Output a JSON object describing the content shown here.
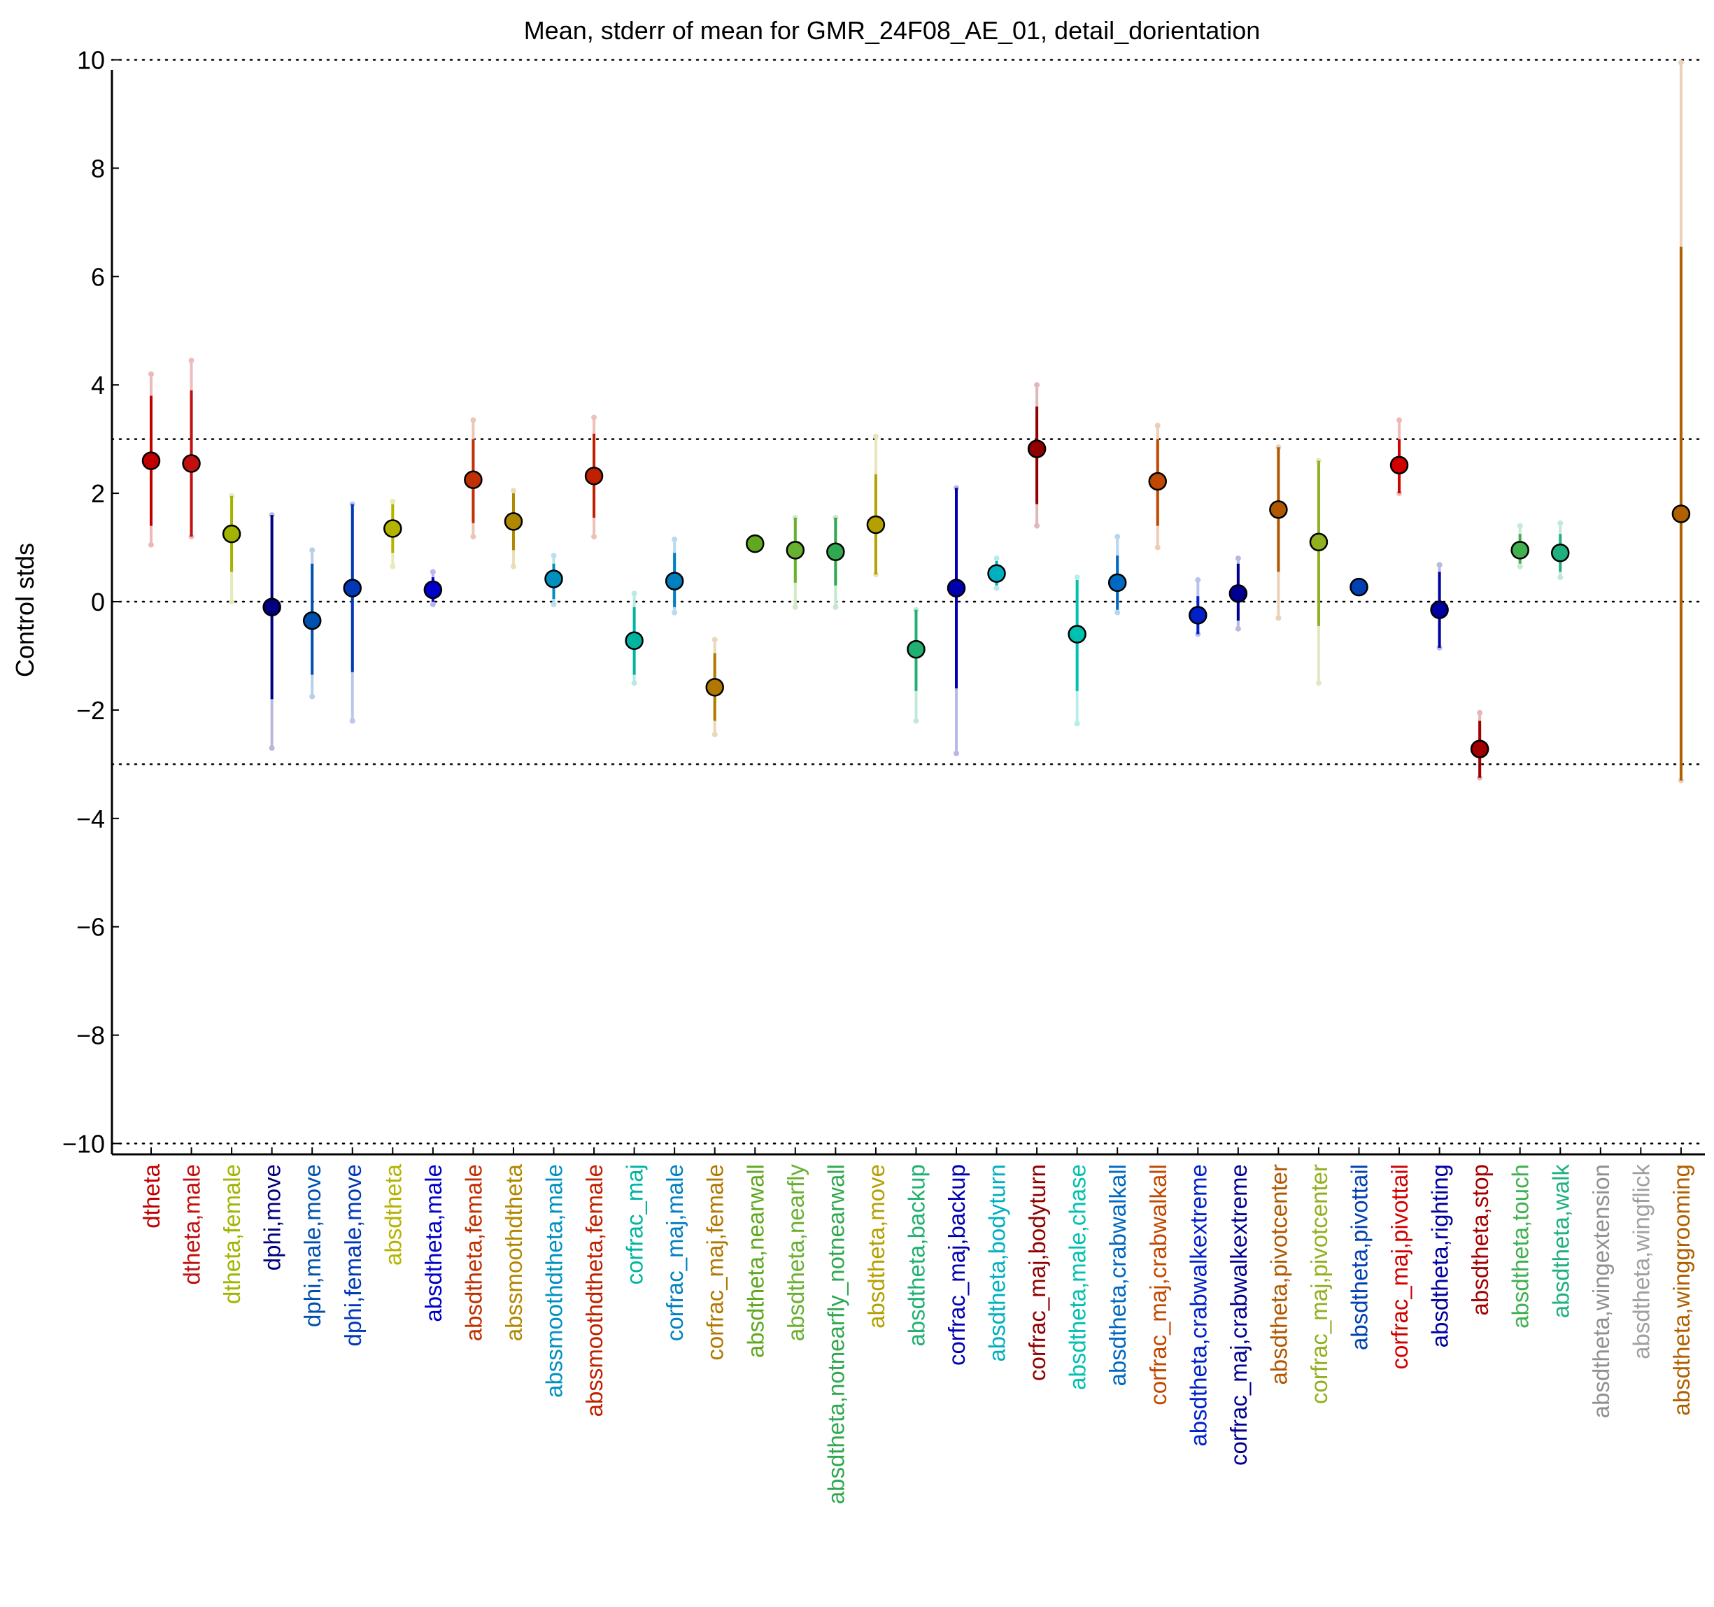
{
  "chart_data": {
    "type": "scatter",
    "title": "Mean, stderr of mean for GMR_24F08_AE_01, detail_dorientation",
    "xlabel": "",
    "ylabel": "Control stds",
    "ylim": [
      -10.2,
      10.2
    ],
    "yticks": [
      10,
      8,
      6,
      4,
      2,
      0,
      -2,
      -4,
      -6,
      -8,
      -10
    ],
    "ytick_labels": [
      "10",
      "8",
      "6",
      "4",
      "2",
      "0",
      "−2",
      "−4",
      "−6",
      "−8",
      "−10"
    ],
    "reference_lines": [
      10,
      3,
      0,
      -3,
      -10
    ],
    "grid": false,
    "legend": "none",
    "points": [
      {
        "label": "dtheta",
        "color": "#c00000",
        "mean": 2.6,
        "err_dark": [
          1.4,
          3.8
        ],
        "err_light": [
          1.05,
          4.2
        ]
      },
      {
        "label": "dtheta,male",
        "color": "#c01010",
        "mean": 2.55,
        "err_dark": [
          1.2,
          3.9
        ],
        "err_light": [
          1.2,
          4.45
        ]
      },
      {
        "label": "dtheta,female",
        "color": "#a0b400",
        "mean": 1.25,
        "err_dark": [
          0.55,
          1.95
        ],
        "err_light": [
          0.0,
          1.95
        ]
      },
      {
        "label": "dphi,move",
        "color": "#000080",
        "mean": -0.1,
        "err_dark": [
          -1.8,
          1.6
        ],
        "err_light": [
          -2.7,
          1.6
        ]
      },
      {
        "label": "dphi,male,move",
        "color": "#0050b0",
        "mean": -0.35,
        "err_dark": [
          -1.35,
          0.7
        ],
        "err_light": [
          -1.75,
          0.95
        ]
      },
      {
        "label": "dphi,female,move",
        "color": "#0038b8",
        "mean": 0.25,
        "err_dark": [
          -1.3,
          1.8
        ],
        "err_light": [
          -2.2,
          1.8
        ]
      },
      {
        "label": "absdtheta",
        "color": "#b4b400",
        "mean": 1.35,
        "err_dark": [
          0.9,
          1.8
        ],
        "err_light": [
          0.65,
          1.85
        ]
      },
      {
        "label": "absdtheta,male",
        "color": "#0000c8",
        "mean": 0.22,
        "err_dark": [
          0.0,
          0.45
        ],
        "err_light": [
          -0.05,
          0.55
        ]
      },
      {
        "label": "absdtheta,female",
        "color": "#c03000",
        "mean": 2.25,
        "err_dark": [
          1.45,
          3.0
        ],
        "err_light": [
          1.2,
          3.35
        ]
      },
      {
        "label": "abssmoothdtheta",
        "color": "#b08800",
        "mean": 1.48,
        "err_dark": [
          0.95,
          2.0
        ],
        "err_light": [
          0.65,
          2.05
        ]
      },
      {
        "label": "abssmoothdtheta,male",
        "color": "#0090c0",
        "mean": 0.42,
        "err_dark": [
          0.05,
          0.7
        ],
        "err_light": [
          -0.05,
          0.85
        ]
      },
      {
        "label": "abssmoothdtheta,female",
        "color": "#c02000",
        "mean": 2.32,
        "err_dark": [
          1.55,
          3.1
        ],
        "err_light": [
          1.2,
          3.4
        ]
      },
      {
        "label": "corfrac_maj",
        "color": "#00b4a0",
        "mean": -0.72,
        "err_dark": [
          -1.35,
          -0.1
        ],
        "err_light": [
          -1.5,
          0.15
        ]
      },
      {
        "label": "corfrac_maj,male",
        "color": "#0080c0",
        "mean": 0.38,
        "err_dark": [
          -0.1,
          0.9
        ],
        "err_light": [
          -0.2,
          1.15
        ]
      },
      {
        "label": "corfrac_maj,female",
        "color": "#b07800",
        "mean": -1.58,
        "err_dark": [
          -2.2,
          -0.95
        ],
        "err_light": [
          -2.45,
          -0.7
        ]
      },
      {
        "label": "absdtheta,nearwall",
        "color": "#60a820",
        "mean": 1.07,
        "err_dark": null,
        "err_light": null
      },
      {
        "label": "absdtheta,nearfly",
        "color": "#68b030",
        "mean": 0.95,
        "err_dark": [
          0.35,
          1.55
        ],
        "err_light": [
          -0.1,
          1.55
        ]
      },
      {
        "label": "absdtheta,notnearfly_notnearwall",
        "color": "#30a850",
        "mean": 0.92,
        "err_dark": [
          0.3,
          1.55
        ],
        "err_light": [
          -0.1,
          1.55
        ]
      },
      {
        "label": "absdtheta,move",
        "color": "#b4a000",
        "mean": 1.42,
        "err_dark": [
          0.5,
          2.35
        ],
        "err_light": [
          0.5,
          3.05
        ]
      },
      {
        "label": "absdtheta,backup",
        "color": "#20b070",
        "mean": -0.88,
        "err_dark": [
          -1.65,
          -0.15
        ],
        "err_light": [
          -2.2,
          -0.15
        ]
      },
      {
        "label": "corfrac_maj,backup",
        "color": "#0000b0",
        "mean": 0.25,
        "err_dark": [
          -1.6,
          2.1
        ],
        "err_light": [
          -2.8,
          2.1
        ]
      },
      {
        "label": "absdtheta,bodyturn",
        "color": "#00b0c0",
        "mean": 0.52,
        "err_dark": [
          0.3,
          0.75
        ],
        "err_light": [
          0.25,
          0.8
        ]
      },
      {
        "label": "corfrac_maj,bodyturn",
        "color": "#900000",
        "mean": 2.82,
        "err_dark": [
          1.8,
          3.6
        ],
        "err_light": [
          1.4,
          4.0
        ]
      },
      {
        "label": "absdtheta,male,chase",
        "color": "#00c0b0",
        "mean": -0.6,
        "err_dark": [
          -1.65,
          0.4
        ],
        "err_light": [
          -2.25,
          0.45
        ]
      },
      {
        "label": "absdtheta,crabwalkall",
        "color": "#0068c0",
        "mean": 0.35,
        "err_dark": [
          -0.15,
          0.85
        ],
        "err_light": [
          -0.2,
          1.2
        ]
      },
      {
        "label": "corfrac_maj,crabwalkall",
        "color": "#c04800",
        "mean": 2.22,
        "err_dark": [
          1.4,
          3.0
        ],
        "err_light": [
          1.0,
          3.25
        ]
      },
      {
        "label": "absdtheta,crabwalkextreme",
        "color": "#0020c8",
        "mean": -0.25,
        "err_dark": [
          -0.6,
          0.1
        ],
        "err_light": [
          -0.6,
          0.4
        ]
      },
      {
        "label": "corfrac_maj,crabwalkextreme",
        "color": "#000090",
        "mean": 0.15,
        "err_dark": [
          -0.35,
          0.7
        ],
        "err_light": [
          -0.5,
          0.8
        ]
      },
      {
        "label": "absdtheta,pivotcenter",
        "color": "#b05800",
        "mean": 1.7,
        "err_dark": [
          0.55,
          2.85
        ],
        "err_light": [
          -0.3,
          2.85
        ]
      },
      {
        "label": "corfrac_maj,pivotcenter",
        "color": "#90b020",
        "mean": 1.1,
        "err_dark": [
          -0.45,
          2.6
        ],
        "err_light": [
          -1.5,
          2.6
        ]
      },
      {
        "label": "absdtheta,pivottail",
        "color": "#0040b0",
        "mean": 0.27,
        "err_dark": null,
        "err_light": null
      },
      {
        "label": "corfrac_maj,pivottail",
        "color": "#d00000",
        "mean": 2.52,
        "err_dark": [
          2.0,
          3.0
        ],
        "err_light": [
          2.0,
          3.35
        ]
      },
      {
        "label": "absdtheta,righting",
        "color": "#0000a0",
        "mean": -0.15,
        "err_dark": [
          -0.85,
          0.55
        ],
        "err_light": [
          -0.85,
          0.68
        ]
      },
      {
        "label": "absdtheta,stop",
        "color": "#a00000",
        "mean": -2.72,
        "err_dark": [
          -3.25,
          -2.2
        ],
        "err_light": [
          -3.25,
          -2.05
        ]
      },
      {
        "label": "absdtheta,touch",
        "color": "#40b050",
        "mean": 0.95,
        "err_dark": [
          0.7,
          1.25
        ],
        "err_light": [
          0.65,
          1.4
        ]
      },
      {
        "label": "absdtheta,walk",
        "color": "#20b080",
        "mean": 0.9,
        "err_dark": [
          0.55,
          1.25
        ],
        "err_light": [
          0.45,
          1.45
        ]
      },
      {
        "label": "absdtheta,wingextension",
        "color": "#909090",
        "mean": null,
        "err_dark": null,
        "err_light": null
      },
      {
        "label": "absdtheta,wingflick",
        "color": "#a0a0a0",
        "mean": null,
        "err_dark": null,
        "err_light": null
      },
      {
        "label": "absdtheta,winggrooming",
        "color": "#b06000",
        "mean": 1.62,
        "err_dark": [
          -3.3,
          6.55
        ],
        "err_light": [
          -3.3,
          9.95
        ]
      }
    ]
  }
}
